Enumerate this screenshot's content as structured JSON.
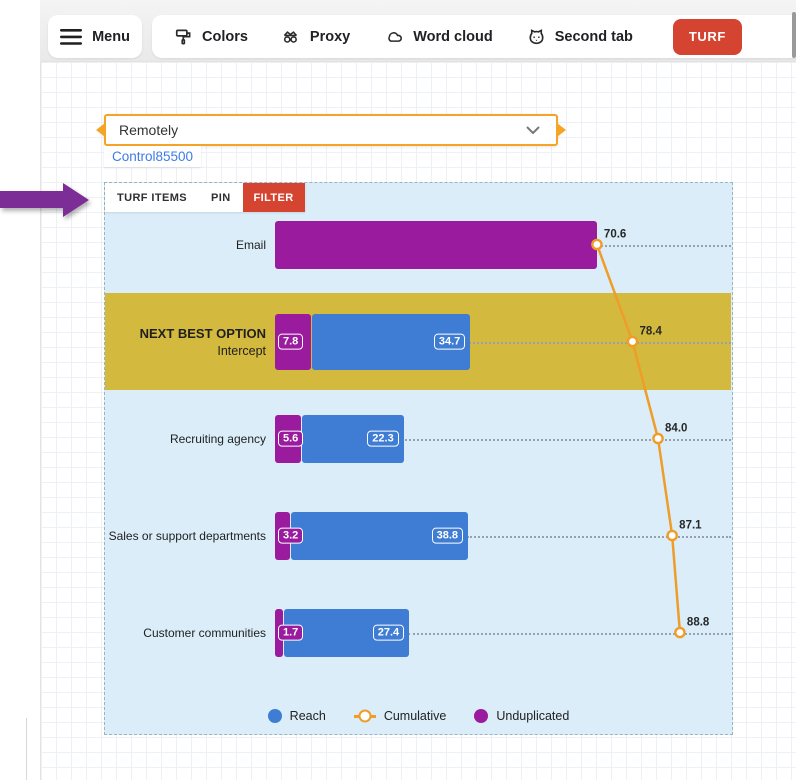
{
  "topbar": {
    "menu_label": "Menu",
    "nav_items": [
      {
        "label": "Colors",
        "icon": "paint-roller-icon"
      },
      {
        "label": "Proxy",
        "icon": "glasses-icon"
      },
      {
        "label": "Word cloud",
        "icon": "cloud-icon"
      },
      {
        "label": "Second tab",
        "icon": "animal-face-icon"
      }
    ],
    "active_tab": {
      "label": "TURF",
      "color": "#d54430"
    }
  },
  "designer": {
    "dropdown": {
      "value": "Remotely"
    },
    "control_label": "Control85500"
  },
  "widget_tabs": [
    {
      "label": "TURF ITEMS",
      "active": false
    },
    {
      "label": "PIN",
      "active": false
    },
    {
      "label": "FILTER",
      "active": true
    }
  ],
  "chart_data": {
    "type": "bar",
    "orientation": "horizontal",
    "value_axis": {
      "min": 0,
      "max": 100,
      "visible": false
    },
    "rows": [
      {
        "label": "Email",
        "sublabel": "",
        "unduplicated": 70.6,
        "reach": null,
        "cumulative": 70.6,
        "highlight": false,
        "show_segment_labels": false
      },
      {
        "label": "NEXT BEST OPTION",
        "sublabel": "Intercept",
        "unduplicated": 7.8,
        "reach": 34.7,
        "cumulative": 78.4,
        "highlight": true,
        "show_segment_labels": true
      },
      {
        "label": "Recruiting agency",
        "sublabel": "",
        "unduplicated": 5.6,
        "reach": 22.3,
        "cumulative": 84.0,
        "highlight": false,
        "show_segment_labels": true
      },
      {
        "label": "Sales or support departments",
        "sublabel": "",
        "unduplicated": 3.2,
        "reach": 38.8,
        "cumulative": 87.1,
        "highlight": false,
        "show_segment_labels": true
      },
      {
        "label": "Customer communities",
        "sublabel": "",
        "unduplicated": 1.7,
        "reach": 27.4,
        "cumulative": 88.8,
        "highlight": false,
        "show_segment_labels": true
      }
    ],
    "legend": [
      {
        "label": "Reach",
        "marker": "dot",
        "color": "#3f7cd3"
      },
      {
        "label": "Cumulative",
        "marker": "line-dot",
        "color": "#ef9d28"
      },
      {
        "label": "Unduplicated",
        "marker": "dot",
        "color": "#9a1b9e"
      }
    ],
    "colors": {
      "reach": "#3f7cd3",
      "unduplicated": "#9a1b9e",
      "cumulative": "#ef9d28",
      "highlight_row": "#d3b93d",
      "row_bg": "#daedf9"
    }
  }
}
